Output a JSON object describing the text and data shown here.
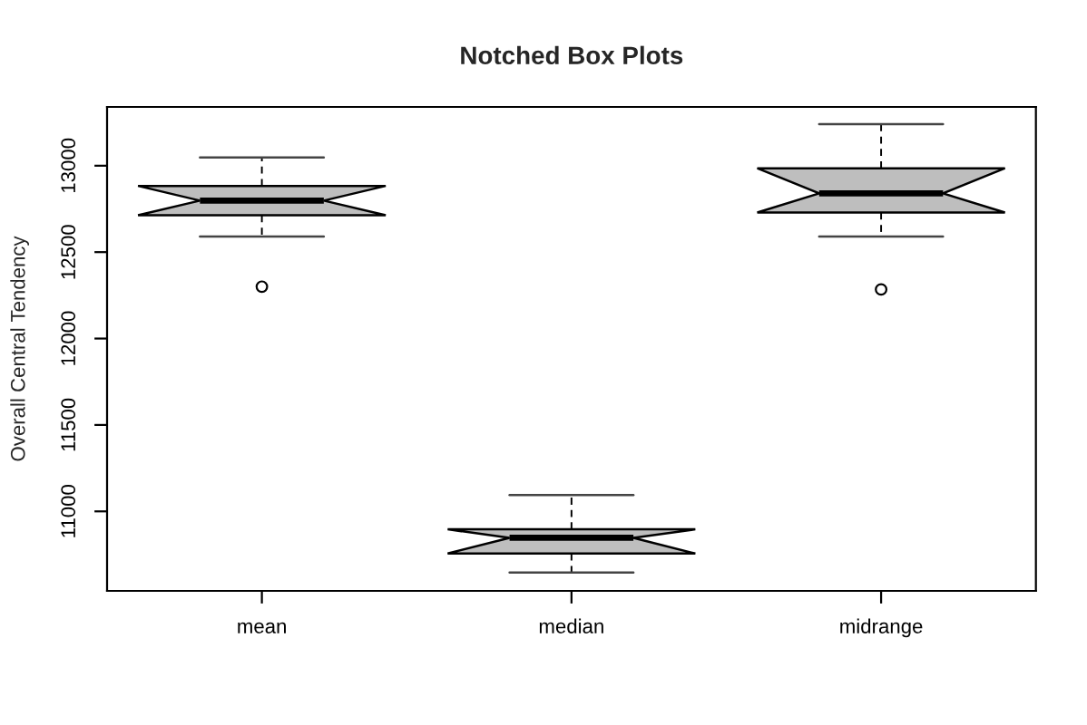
{
  "chart_data": {
    "type": "box",
    "title": "Notched Box Plots",
    "ylabel": "Overall Central Tendency",
    "categories": [
      "mean",
      "median",
      "midrange"
    ],
    "series": [
      {
        "color": "#bebebe",
        "boxes": [
          {
            "low": 12590,
            "q1": 12713,
            "median": 12798,
            "q3": 12883,
            "high": 13048,
            "outliers": [
              12300
            ]
          },
          {
            "low": 10646,
            "q1": 10756,
            "median": 10847,
            "q3": 10896,
            "high": 11094
          },
          {
            "low": 12590,
            "q1": 12729,
            "median": 12840,
            "q3": 12985,
            "high": 13240,
            "outliers": [
              12284
            ]
          }
        ]
      }
    ],
    "ylim": [
      10540,
      13340
    ],
    "yticks": [
      11000,
      11500,
      12000,
      12500,
      13000
    ]
  }
}
